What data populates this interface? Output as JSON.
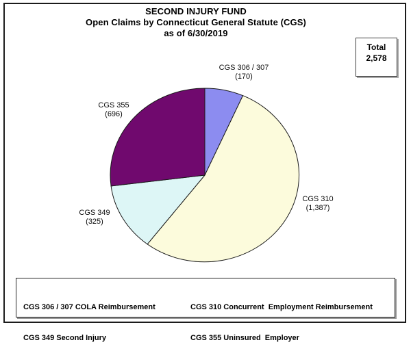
{
  "chart_data": {
    "type": "pie",
    "title": "SECOND INJURY FUND",
    "subtitle": "Open Claims by Connecticut General Statute (CGS)",
    "as_of": "as of 6/30/2019",
    "total": {
      "label": "Total",
      "value": "2,578"
    },
    "slices": [
      {
        "name": "CGS 306 / 307",
        "value": 170,
        "value_display": "(170)",
        "color": "#8c8cf0"
      },
      {
        "name": "CGS 310",
        "value": 1387,
        "value_display": "(1,387)",
        "color": "#fcfbdc"
      },
      {
        "name": "CGS 349",
        "value": 325,
        "value_display": "(325)",
        "color": "#ddf6f6"
      },
      {
        "name": "CGS 355",
        "value": 696,
        "value_display": "(696)",
        "color": "#70096e"
      }
    ],
    "start_angle_deg": 0,
    "direction": "clockwise",
    "outline_color": "#1a1a1a",
    "legend": {
      "columns": [
        [
          "CGS 306 / 307 COLA Reimbursement",
          "CGS 349 Second Injury"
        ],
        [
          "CGS 310 Concurrent  Employment Reimbursement",
          "CGS 355 Uninsured  Employer"
        ]
      ]
    }
  }
}
